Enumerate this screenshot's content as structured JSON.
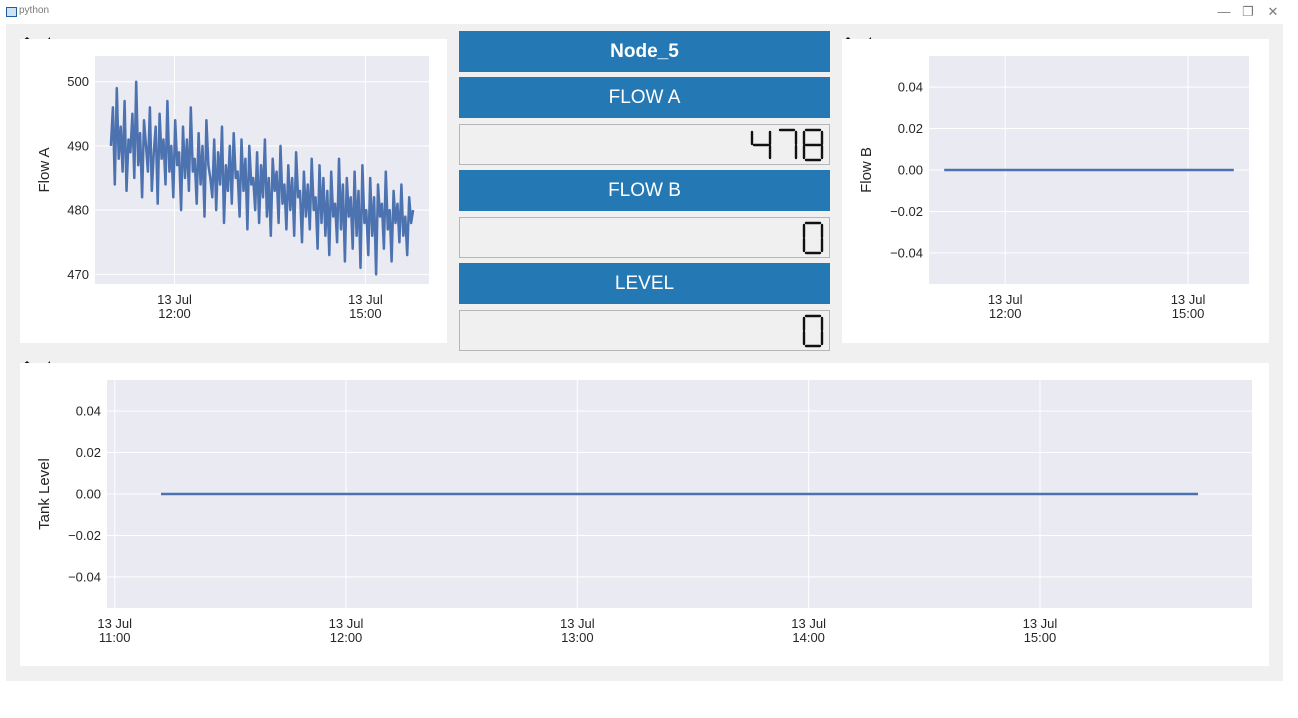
{
  "window": {
    "title": "python",
    "minimize_glyph": "—",
    "restore_glyph": "❐",
    "close_glyph": "✕"
  },
  "toolbar": {
    "home_icon": "home-icon",
    "back_icon": "back-arrow-icon",
    "more_label": "»"
  },
  "center": {
    "node_title": "Node_5",
    "flow_a_label": "FLOW A",
    "flow_a_value": "478",
    "flow_b_label": "FLOW B",
    "flow_b_value": "0",
    "level_label": "LEVEL",
    "level_value": "0"
  },
  "colors": {
    "header_blue": "#2479b5",
    "plot_bg": "#eaeaf2",
    "line": "#4c72b0"
  },
  "chart_data": [
    {
      "id": "flow_a",
      "type": "line",
      "ylabel": "Flow A",
      "xlabel": "",
      "xlim": [
        "2024-07-13T10:45",
        "2024-07-13T16:00"
      ],
      "ylim": [
        468.5,
        504
      ],
      "yticks": [
        470,
        480,
        490,
        500
      ],
      "xticks": [
        {
          "time": "2024-07-13T12:00",
          "label": [
            "13 Jul",
            "12:00"
          ]
        },
        {
          "time": "2024-07-13T15:00",
          "label": [
            "13 Jul",
            "15:00"
          ]
        }
      ],
      "series": [
        {
          "x_start": "2024-07-13T11:00",
          "x_end": "2024-07-13T15:45",
          "values": [
            490,
            496,
            484,
            499,
            488,
            493,
            486,
            497,
            483,
            491,
            489,
            495,
            485,
            500,
            487,
            492,
            482,
            494,
            490,
            486,
            496,
            483,
            489,
            493,
            481,
            495,
            488,
            491,
            484,
            497,
            486,
            490,
            482,
            494,
            487,
            489,
            480,
            493,
            485,
            491,
            483,
            496,
            486,
            488,
            481,
            492,
            484,
            490,
            479,
            494,
            487,
            485,
            482,
            491,
            480,
            489,
            484,
            493,
            478,
            487,
            483,
            490,
            481,
            492,
            485,
            486,
            479,
            491,
            483,
            488,
            477,
            490,
            484,
            485,
            480,
            489,
            478,
            487,
            482,
            491,
            479,
            485,
            476,
            488,
            483,
            486,
            478,
            490,
            481,
            484,
            477,
            487,
            480,
            485,
            476,
            489,
            482,
            483,
            475,
            486,
            479,
            484,
            477,
            488,
            480,
            482,
            474,
            487,
            478,
            485,
            476,
            483,
            473,
            486,
            479,
            481,
            475,
            488,
            477,
            484,
            472,
            485,
            479,
            482,
            474,
            486,
            476,
            483,
            471,
            487,
            478,
            480,
            473,
            485,
            476,
            482,
            470,
            484,
            479,
            481,
            474,
            486,
            477,
            480,
            472,
            483,
            478,
            481,
            475,
            484,
            476,
            479,
            473,
            482,
            478,
            480
          ]
        }
      ]
    },
    {
      "id": "flow_b",
      "type": "line",
      "ylabel": "Flow B",
      "xlabel": "",
      "xlim": [
        "2024-07-13T10:45",
        "2024-07-13T16:00"
      ],
      "ylim": [
        -0.055,
        0.055
      ],
      "yticks": [
        "0.04",
        "0.02",
        "0.00",
        "−0.02",
        "−0.04"
      ],
      "xticks": [
        {
          "time": "2024-07-13T12:00",
          "label": [
            "13 Jul",
            "12:00"
          ]
        },
        {
          "time": "2024-07-13T15:00",
          "label": [
            "13 Jul",
            "15:00"
          ]
        }
      ],
      "series": [
        {
          "x": [
            "2024-07-13T11:00",
            "2024-07-13T15:45"
          ],
          "values": [
            0,
            0
          ]
        }
      ]
    },
    {
      "id": "tank_level",
      "type": "line",
      "ylabel": "Tank Level",
      "xlabel": "",
      "xlim": [
        "2024-07-13T10:58",
        "2024-07-13T15:55"
      ],
      "ylim": [
        -0.055,
        0.055
      ],
      "yticks": [
        "0.04",
        "0.02",
        "0.00",
        "−0.02",
        "−0.04"
      ],
      "xticks": [
        {
          "time": "2024-07-13T11:00",
          "label": [
            "13 Jul",
            "11:00"
          ]
        },
        {
          "time": "2024-07-13T12:00",
          "label": [
            "13 Jul",
            "12:00"
          ]
        },
        {
          "time": "2024-07-13T13:00",
          "label": [
            "13 Jul",
            "13:00"
          ]
        },
        {
          "time": "2024-07-13T14:00",
          "label": [
            "13 Jul",
            "14:00"
          ]
        },
        {
          "time": "2024-07-13T15:00",
          "label": [
            "13 Jul",
            "15:00"
          ]
        }
      ],
      "series": [
        {
          "x": [
            "2024-07-13T11:12",
            "2024-07-13T15:41"
          ],
          "values": [
            0,
            0
          ]
        }
      ]
    }
  ]
}
